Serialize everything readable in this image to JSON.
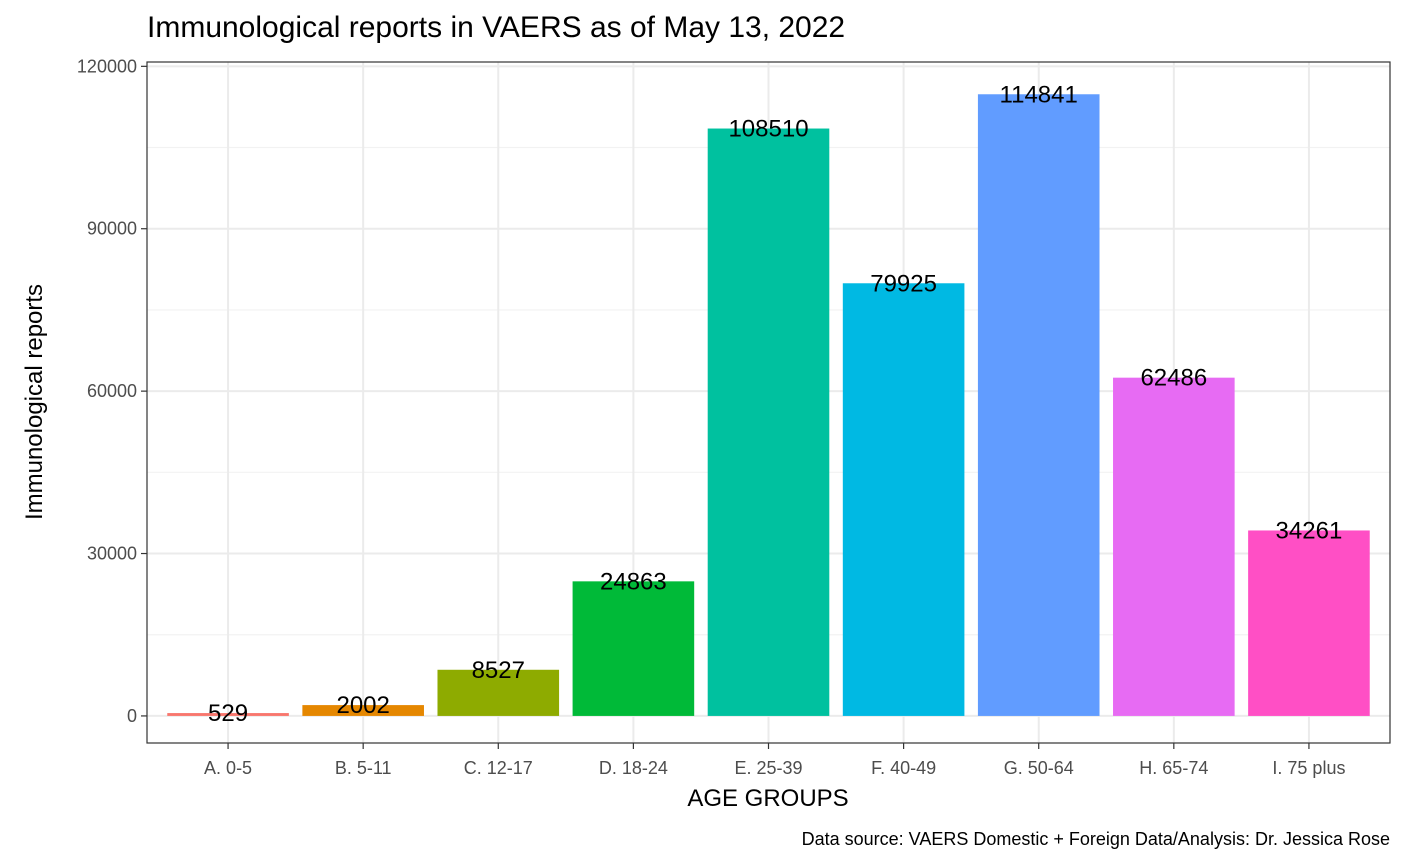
{
  "chart_data": {
    "type": "bar",
    "title": "Immunological reports in VAERS as of May 13, 2022",
    "xlabel": "AGE GROUPS",
    "ylabel": "Immunological reports",
    "caption": "Data source: VAERS Domestic + Foreign Data/Analysis: Dr. Jessica Rose",
    "categories": [
      "A. 0-5",
      "B. 5-11",
      "C. 12-17",
      "D. 18-24",
      "E. 25-39",
      "F. 40-49",
      "G. 50-64",
      "H. 65-74",
      "I. 75 plus"
    ],
    "values": [
      529,
      2002,
      8527,
      24863,
      108510,
      79925,
      114841,
      62486,
      34261
    ],
    "data_labels": [
      "529",
      "2002",
      "8527",
      "24863",
      "108510",
      "79925",
      "114841",
      "62486",
      "34261"
    ],
    "colors": [
      "#F8766D",
      "#E58700",
      "#8EAB00",
      "#00BA38",
      "#00C19F",
      "#00B9E3",
      "#619CFF",
      "#E76BF3",
      "#FF4FC5"
    ],
    "ylim": [
      -5000,
      120800
    ],
    "yticks": [
      0,
      30000,
      60000,
      90000,
      120000
    ],
    "ytick_labels": [
      "0",
      "30000",
      "60000",
      "90000",
      "120000"
    ],
    "grid": true,
    "legend": "none"
  }
}
